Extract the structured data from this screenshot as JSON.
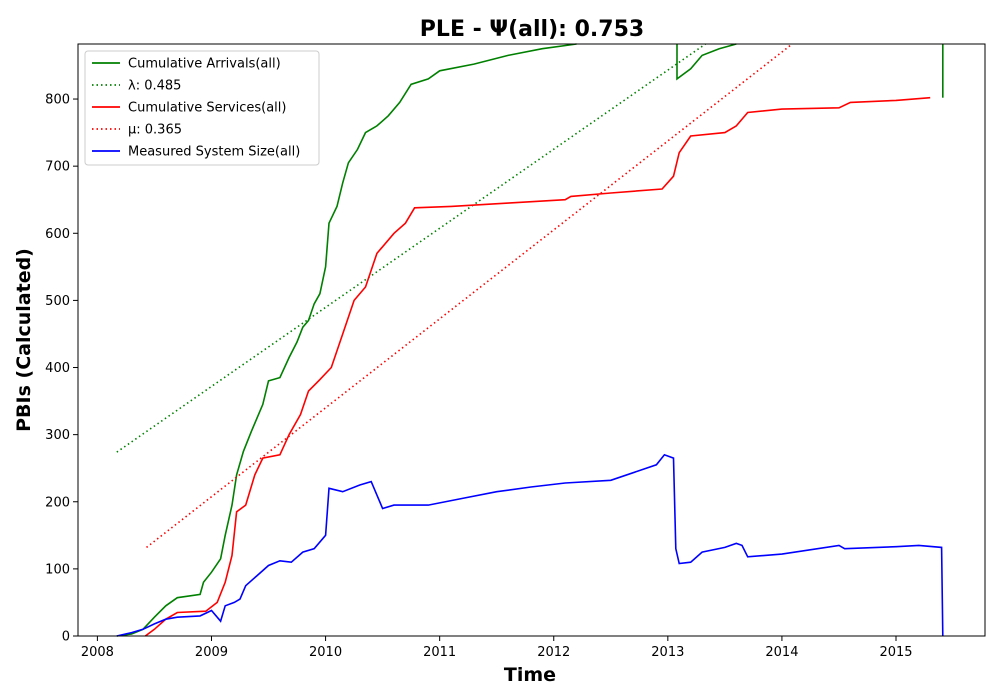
{
  "chart_data": {
    "type": "line",
    "title": "PLE -  Ψ(all): 0.753",
    "xlabel": "Time",
    "ylabel": "PBIs (Calculated)",
    "xlim": [
      2007.83,
      2015.78
    ],
    "ylim": [
      0,
      882
    ],
    "x_ticks": [
      "2008",
      "2009",
      "2010",
      "2011",
      "2012",
      "2013",
      "2014",
      "2015"
    ],
    "y_ticks": [
      "0",
      "100",
      "200",
      "300",
      "400",
      "500",
      "600",
      "700",
      "800"
    ],
    "grid": false,
    "legend_position": "top-left",
    "series": [
      {
        "name": "Cumulative Arrivals(all)",
        "color": "#008000",
        "style": "solid",
        "points": [
          [
            2008.17,
            0
          ],
          [
            2008.3,
            3
          ],
          [
            2008.4,
            10
          ],
          [
            2008.5,
            28
          ],
          [
            2008.6,
            45
          ],
          [
            2008.7,
            57
          ],
          [
            2008.9,
            62
          ],
          [
            2008.93,
            80
          ],
          [
            2009.0,
            95
          ],
          [
            2009.08,
            115
          ],
          [
            2009.12,
            150
          ],
          [
            2009.18,
            195
          ],
          [
            2009.22,
            240
          ],
          [
            2009.28,
            275
          ],
          [
            2009.35,
            305
          ],
          [
            2009.45,
            345
          ],
          [
            2009.5,
            380
          ],
          [
            2009.6,
            385
          ],
          [
            2009.68,
            415
          ],
          [
            2009.75,
            438
          ],
          [
            2009.8,
            460
          ],
          [
            2009.85,
            470
          ],
          [
            2009.9,
            495
          ],
          [
            2009.95,
            510
          ],
          [
            2010.0,
            550
          ],
          [
            2010.03,
            615
          ],
          [
            2010.1,
            640
          ],
          [
            2010.15,
            675
          ],
          [
            2010.2,
            705
          ],
          [
            2010.28,
            725
          ],
          [
            2010.35,
            750
          ],
          [
            2010.45,
            760
          ],
          [
            2010.55,
            775
          ],
          [
            2010.65,
            795
          ],
          [
            2010.75,
            822
          ],
          [
            2010.9,
            830
          ],
          [
            2011.0,
            842
          ],
          [
            2011.3,
            852
          ],
          [
            2011.6,
            865
          ],
          [
            2011.9,
            875
          ],
          [
            2012.2,
            882
          ]
        ]
      },
      {
        "name": "Cumulative Arrivals(all) 2013",
        "color": "#008000",
        "style": "solid",
        "points": [
          [
            2013.08,
            882
          ],
          [
            2013.08,
            830
          ],
          [
            2013.2,
            845
          ],
          [
            2013.3,
            865
          ],
          [
            2013.45,
            875
          ],
          [
            2013.6,
            882
          ]
        ]
      },
      {
        "name": "Cumulative Arrivals(all) 2015",
        "color": "#008000",
        "style": "solid",
        "points": [
          [
            2015.41,
            882
          ],
          [
            2015.41,
            802
          ]
        ]
      },
      {
        "name": "λ: 0.485",
        "color": "#008000",
        "style": "dotted",
        "points": [
          [
            2008.17,
            274
          ],
          [
            2013.33,
            882
          ]
        ]
      },
      {
        "name": "Cumulative Services(all)",
        "color": "#ff0000",
        "style": "solid",
        "points": [
          [
            2008.42,
            0
          ],
          [
            2008.5,
            10
          ],
          [
            2008.6,
            25
          ],
          [
            2008.7,
            35
          ],
          [
            2008.95,
            37
          ],
          [
            2009.05,
            50
          ],
          [
            2009.12,
            80
          ],
          [
            2009.18,
            120
          ],
          [
            2009.22,
            185
          ],
          [
            2009.3,
            195
          ],
          [
            2009.38,
            240
          ],
          [
            2009.45,
            265
          ],
          [
            2009.6,
            270
          ],
          [
            2009.68,
            300
          ],
          [
            2009.78,
            330
          ],
          [
            2009.85,
            365
          ],
          [
            2009.95,
            382
          ],
          [
            2010.05,
            400
          ],
          [
            2010.15,
            450
          ],
          [
            2010.25,
            500
          ],
          [
            2010.35,
            520
          ],
          [
            2010.45,
            570
          ],
          [
            2010.6,
            600
          ],
          [
            2010.7,
            615
          ],
          [
            2010.78,
            638
          ],
          [
            2011.1,
            640
          ],
          [
            2011.6,
            645
          ],
          [
            2012.1,
            650
          ],
          [
            2012.15,
            655
          ],
          [
            2012.5,
            660
          ],
          [
            2012.95,
            666
          ],
          [
            2013.05,
            685
          ],
          [
            2013.1,
            720
          ],
          [
            2013.2,
            745
          ],
          [
            2013.5,
            750
          ],
          [
            2013.6,
            760
          ],
          [
            2013.7,
            780
          ],
          [
            2014.0,
            785
          ],
          [
            2014.5,
            787
          ],
          [
            2014.6,
            795
          ],
          [
            2015.0,
            798
          ],
          [
            2015.3,
            802
          ]
        ]
      },
      {
        "name": "μ: 0.365",
        "color": "#ff0000",
        "style": "dotted",
        "points": [
          [
            2008.43,
            132
          ],
          [
            2014.09,
            882
          ]
        ]
      },
      {
        "name": "Measured System Size(all)",
        "color": "#0000ff",
        "style": "solid",
        "points": [
          [
            2008.17,
            0
          ],
          [
            2008.3,
            5
          ],
          [
            2008.4,
            10
          ],
          [
            2008.5,
            18
          ],
          [
            2008.6,
            25
          ],
          [
            2008.7,
            28
          ],
          [
            2008.9,
            30
          ],
          [
            2009.0,
            38
          ],
          [
            2009.08,
            22
          ],
          [
            2009.12,
            45
          ],
          [
            2009.2,
            50
          ],
          [
            2009.25,
            55
          ],
          [
            2009.3,
            75
          ],
          [
            2009.4,
            90
          ],
          [
            2009.5,
            105
          ],
          [
            2009.6,
            112
          ],
          [
            2009.7,
            110
          ],
          [
            2009.8,
            125
          ],
          [
            2009.9,
            130
          ],
          [
            2010.0,
            150
          ],
          [
            2010.03,
            220
          ],
          [
            2010.15,
            215
          ],
          [
            2010.3,
            225
          ],
          [
            2010.4,
            230
          ],
          [
            2010.5,
            190
          ],
          [
            2010.6,
            195
          ],
          [
            2010.7,
            195
          ],
          [
            2010.9,
            195
          ],
          [
            2011.2,
            205
          ],
          [
            2011.5,
            215
          ],
          [
            2011.8,
            222
          ],
          [
            2012.1,
            228
          ],
          [
            2012.5,
            232
          ],
          [
            2012.9,
            255
          ],
          [
            2012.97,
            270
          ],
          [
            2013.05,
            265
          ],
          [
            2013.07,
            130
          ],
          [
            2013.1,
            108
          ],
          [
            2013.2,
            110
          ],
          [
            2013.3,
            125
          ],
          [
            2013.5,
            132
          ],
          [
            2013.6,
            138
          ],
          [
            2013.65,
            135
          ],
          [
            2013.7,
            118
          ],
          [
            2014.0,
            122
          ],
          [
            2014.5,
            135
          ],
          [
            2014.55,
            130
          ],
          [
            2015.0,
            133
          ],
          [
            2015.2,
            135
          ],
          [
            2015.4,
            132
          ],
          [
            2015.41,
            0
          ]
        ]
      }
    ],
    "legend": [
      {
        "label": "Cumulative Arrivals(all)",
        "color": "#008000",
        "style": "solid"
      },
      {
        "label": "λ: 0.485",
        "color": "#008000",
        "style": "dotted"
      },
      {
        "label": "Cumulative Services(all)",
        "color": "#ff0000",
        "style": "solid"
      },
      {
        "label": "μ: 0.365",
        "color": "#ff0000",
        "style": "dotted"
      },
      {
        "label": "Measured System Size(all)",
        "color": "#0000ff",
        "style": "solid"
      }
    ]
  }
}
